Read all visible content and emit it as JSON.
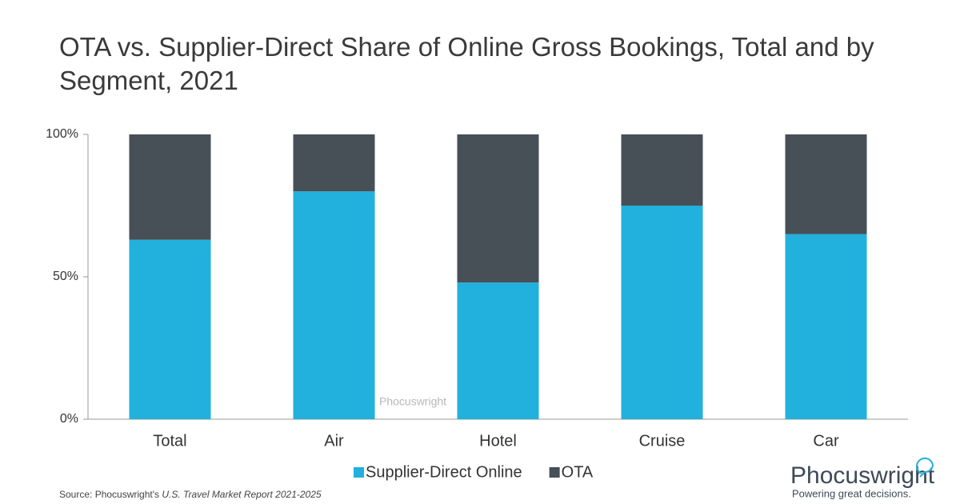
{
  "chart_data": {
    "type": "stacked-bar",
    "title": "OTA vs. Supplier-Direct Share of Online Gross Bookings, Total and by Segment, 2021",
    "categories": [
      "Total",
      "Air",
      "Hotel",
      "Cruise",
      "Car"
    ],
    "series": [
      {
        "name": "Supplier-Direct Online",
        "color": "#22b0dc",
        "values": [
          63,
          80,
          48,
          75,
          65
        ]
      },
      {
        "name": "OTA",
        "color": "#474f57",
        "values": [
          37,
          20,
          52,
          25,
          35
        ]
      }
    ],
    "ylim": [
      0,
      100
    ],
    "yticks": [
      {
        "value": 0,
        "label": "0%"
      },
      {
        "value": 50,
        "label": "50%"
      },
      {
        "value": 100,
        "label": "100%"
      }
    ],
    "legend": "bottom",
    "source_prefix": "Source: Phocuswright's ",
    "source_report": "U.S. Travel Market Report 2021-2025",
    "watermark": "Phocuswright",
    "logo_name": "Phocuswright",
    "logo_tagline": "Powering great decisions."
  }
}
